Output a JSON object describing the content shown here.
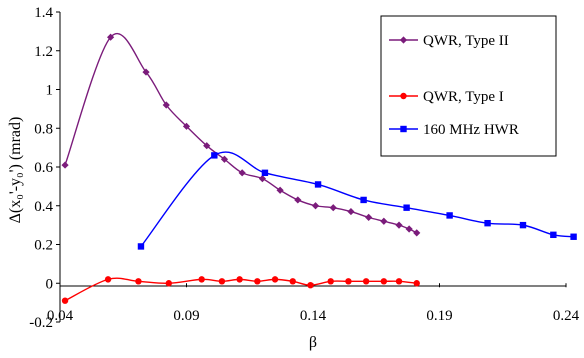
{
  "chart_data": {
    "type": "line",
    "title": "",
    "xlabel": "β",
    "ylabel": "Δ(x₀'-y₀') (mrad)",
    "xlim": [
      0.04,
      0.24
    ],
    "ylim": [
      -0.2,
      1.4
    ],
    "x_ticks": [
      0.04,
      0.09,
      0.14,
      0.19,
      0.24
    ],
    "x_tick_labels": [
      "0.04",
      "0.09",
      "0.14",
      "0.19",
      "0.24"
    ],
    "y_ticks": [
      -0.2,
      0,
      0.2,
      0.4,
      0.6,
      0.8,
      1,
      1.2,
      1.4
    ],
    "y_tick_labels": [
      "-0.2",
      "0",
      "0.2",
      "0.4",
      "0.6",
      "0.8",
      "1",
      "1.2",
      "1.4"
    ],
    "grid": false,
    "legend_position": "top-right",
    "series": [
      {
        "name": "QWR, Type II",
        "color": "#7B1C7B",
        "marker": "diamond",
        "x": [
          0.042,
          0.06,
          0.074,
          0.082,
          0.09,
          0.098,
          0.105,
          0.112,
          0.12,
          0.127,
          0.134,
          0.141,
          0.148,
          0.155,
          0.162,
          0.168,
          0.174,
          0.178,
          0.181
        ],
        "y": [
          0.61,
          1.27,
          1.09,
          0.92,
          0.81,
          0.71,
          0.64,
          0.57,
          0.54,
          0.48,
          0.43,
          0.4,
          0.39,
          0.37,
          0.34,
          0.32,
          0.3,
          0.28,
          0.26
        ]
      },
      {
        "name": "QWR, Type I",
        "color": "#FF0000",
        "marker": "circle",
        "x": [
          0.042,
          0.059,
          0.071,
          0.083,
          0.096,
          0.104,
          0.111,
          0.118,
          0.125,
          0.132,
          0.139,
          0.147,
          0.154,
          0.161,
          0.168,
          0.174,
          0.181
        ],
        "y": [
          -0.09,
          0.02,
          0.01,
          0.0,
          0.02,
          0.01,
          0.02,
          0.01,
          0.02,
          0.01,
          -0.01,
          0.01,
          0.01,
          0.01,
          0.01,
          0.01,
          0.0
        ]
      },
      {
        "name": "160 MHz HWR",
        "color": "#0000FF",
        "marker": "square",
        "x": [
          0.072,
          0.101,
          0.121,
          0.142,
          0.16,
          0.177,
          0.194,
          0.209,
          0.223,
          0.235,
          0.243
        ],
        "y": [
          0.19,
          0.66,
          0.57,
          0.51,
          0.43,
          0.39,
          0.35,
          0.31,
          0.3,
          0.25,
          0.24
        ]
      }
    ]
  }
}
